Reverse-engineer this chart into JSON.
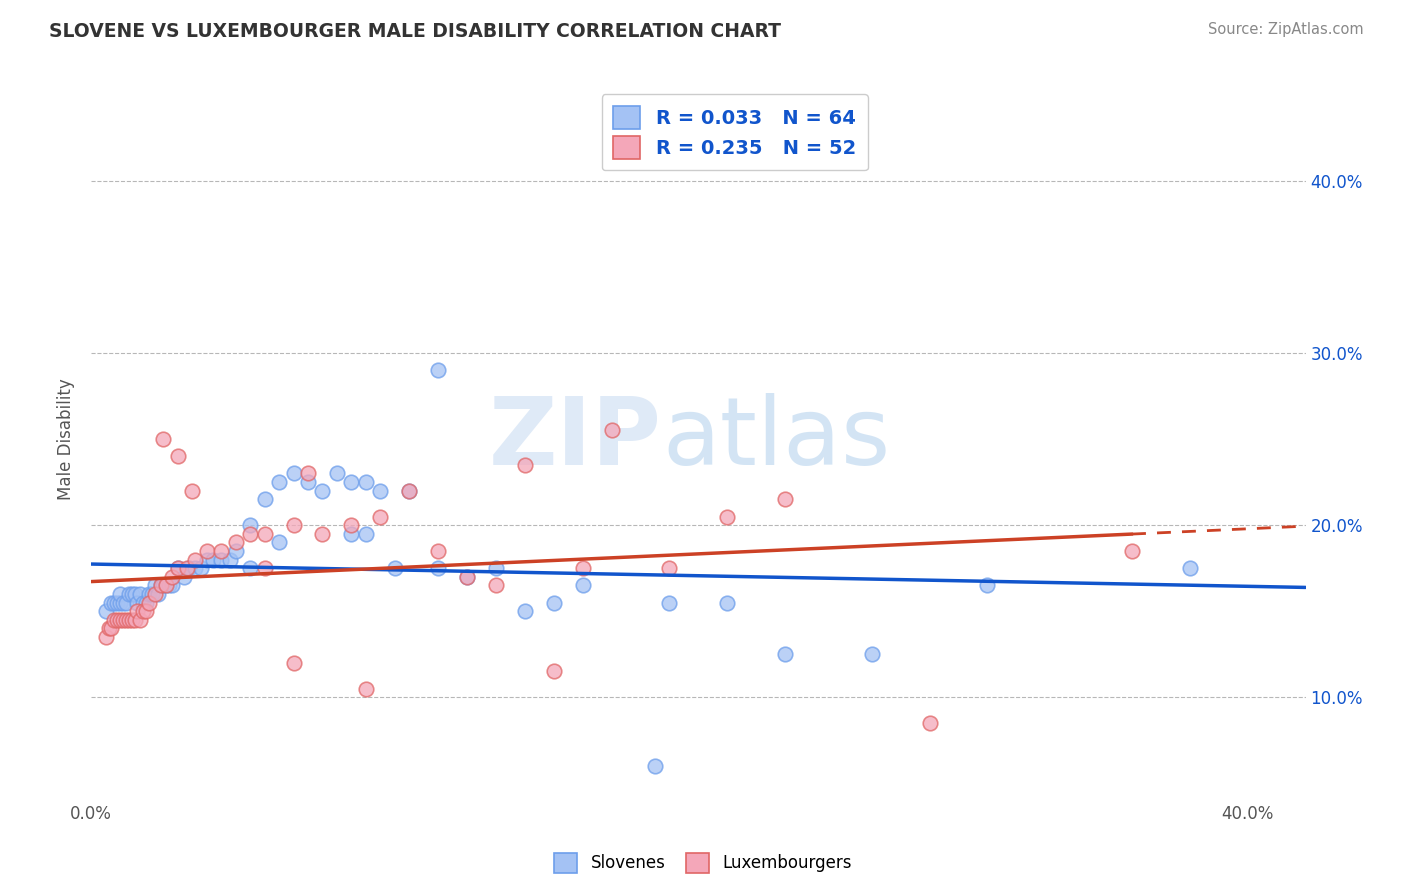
{
  "title": "SLOVENE VS LUXEMBOURGER MALE DISABILITY CORRELATION CHART",
  "source_text": "Source: ZipAtlas.com",
  "ylabel": "Male Disability",
  "legend_labels": [
    "Slovenes",
    "Luxembourgers"
  ],
  "xlim": [
    0.0,
    0.42
  ],
  "ylim": [
    0.04,
    0.46
  ],
  "blue_color": "#a4c2f4",
  "pink_color": "#f4a7b9",
  "blue_edge_color": "#6d9eeb",
  "pink_edge_color": "#e06666",
  "blue_line_color": "#1155cc",
  "pink_line_color": "#cc4125",
  "grid_color": "#b7b7b7",
  "right_axis_color": "#1155cc",
  "R_blue": 0.033,
  "N_blue": 64,
  "R_pink": 0.235,
  "N_pink": 52,
  "watermark_zip": "ZIP",
  "watermark_atlas": "atlas",
  "blue_scatter_x": [
    0.005,
    0.007,
    0.008,
    0.009,
    0.01,
    0.01,
    0.011,
    0.012,
    0.013,
    0.014,
    0.015,
    0.016,
    0.017,
    0.018,
    0.019,
    0.02,
    0.021,
    0.022,
    0.023,
    0.024,
    0.025,
    0.026,
    0.027,
    0.028,
    0.03,
    0.032,
    0.034,
    0.036,
    0.038,
    0.04,
    0.042,
    0.045,
    0.048,
    0.05,
    0.055,
    0.06,
    0.065,
    0.07,
    0.075,
    0.08,
    0.085,
    0.09,
    0.095,
    0.1,
    0.11,
    0.12,
    0.13,
    0.14,
    0.15,
    0.16,
    0.2,
    0.22,
    0.24,
    0.27,
    0.055,
    0.065,
    0.09,
    0.095,
    0.105,
    0.12,
    0.38,
    0.31,
    0.17,
    0.195
  ],
  "blue_scatter_y": [
    0.15,
    0.155,
    0.155,
    0.155,
    0.155,
    0.16,
    0.155,
    0.155,
    0.16,
    0.16,
    0.16,
    0.155,
    0.16,
    0.155,
    0.155,
    0.16,
    0.16,
    0.165,
    0.16,
    0.165,
    0.165,
    0.165,
    0.165,
    0.165,
    0.175,
    0.17,
    0.175,
    0.175,
    0.175,
    0.18,
    0.18,
    0.18,
    0.18,
    0.185,
    0.2,
    0.215,
    0.225,
    0.23,
    0.225,
    0.22,
    0.23,
    0.225,
    0.225,
    0.22,
    0.22,
    0.175,
    0.17,
    0.175,
    0.15,
    0.155,
    0.155,
    0.155,
    0.125,
    0.125,
    0.175,
    0.19,
    0.195,
    0.195,
    0.175,
    0.29,
    0.175,
    0.165,
    0.165,
    0.06
  ],
  "pink_scatter_x": [
    0.005,
    0.006,
    0.007,
    0.008,
    0.009,
    0.01,
    0.011,
    0.012,
    0.013,
    0.014,
    0.015,
    0.016,
    0.017,
    0.018,
    0.019,
    0.02,
    0.022,
    0.024,
    0.026,
    0.028,
    0.03,
    0.033,
    0.036,
    0.04,
    0.045,
    0.05,
    0.055,
    0.06,
    0.07,
    0.08,
    0.09,
    0.1,
    0.12,
    0.14,
    0.17,
    0.2,
    0.22,
    0.24,
    0.06,
    0.075,
    0.11,
    0.13,
    0.15,
    0.18,
    0.025,
    0.03,
    0.035,
    0.07,
    0.095,
    0.16,
    0.36,
    0.29
  ],
  "pink_scatter_y": [
    0.135,
    0.14,
    0.14,
    0.145,
    0.145,
    0.145,
    0.145,
    0.145,
    0.145,
    0.145,
    0.145,
    0.15,
    0.145,
    0.15,
    0.15,
    0.155,
    0.16,
    0.165,
    0.165,
    0.17,
    0.175,
    0.175,
    0.18,
    0.185,
    0.185,
    0.19,
    0.195,
    0.195,
    0.2,
    0.195,
    0.2,
    0.205,
    0.185,
    0.165,
    0.175,
    0.175,
    0.205,
    0.215,
    0.175,
    0.23,
    0.22,
    0.17,
    0.235,
    0.255,
    0.25,
    0.24,
    0.22,
    0.12,
    0.105,
    0.115,
    0.185,
    0.085
  ]
}
